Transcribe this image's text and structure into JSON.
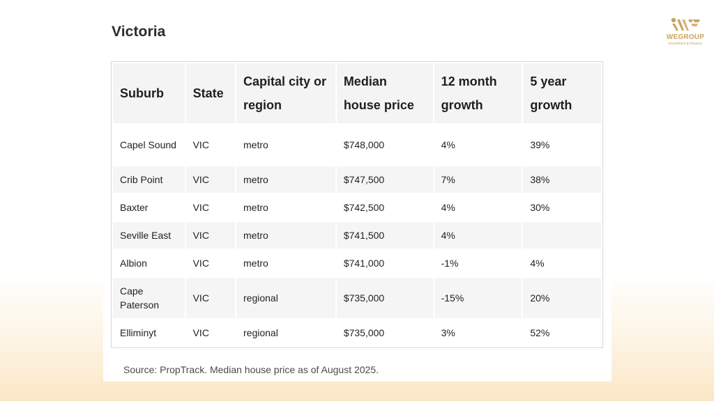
{
  "page": {
    "title": "Victoria",
    "source": "Source: PropTrack. Median house price as of August 2025."
  },
  "logo": {
    "name": "WEGROUP",
    "tagline": "Investment & Finance",
    "color": "#c9a364"
  },
  "table": {
    "headers": [
      "Suburb",
      "State",
      "Capital city or region",
      "Median house price",
      "12 month growth",
      "5 year growth"
    ],
    "rows": [
      [
        "Capel Sound",
        "VIC",
        "metro",
        "$748,000",
        "4%",
        "39%"
      ],
      [
        "Crib Point",
        "VIC",
        "metro",
        "$747,500",
        "7%",
        "38%"
      ],
      [
        "Baxter",
        "VIC",
        "metro",
        "$742,500",
        "4%",
        "30%"
      ],
      [
        "Seville East",
        "VIC",
        "metro",
        "$741,500",
        "4%",
        ""
      ],
      [
        "Albion",
        "VIC",
        "metro",
        "$741,000",
        "-1%",
        "4%"
      ],
      [
        "Cape Paterson",
        "VIC",
        "regional",
        "$735,000",
        "-15%",
        "20%"
      ],
      [
        "Elliminyt",
        "VIC",
        "regional",
        "$735,000",
        "3%",
        "52%"
      ]
    ]
  }
}
